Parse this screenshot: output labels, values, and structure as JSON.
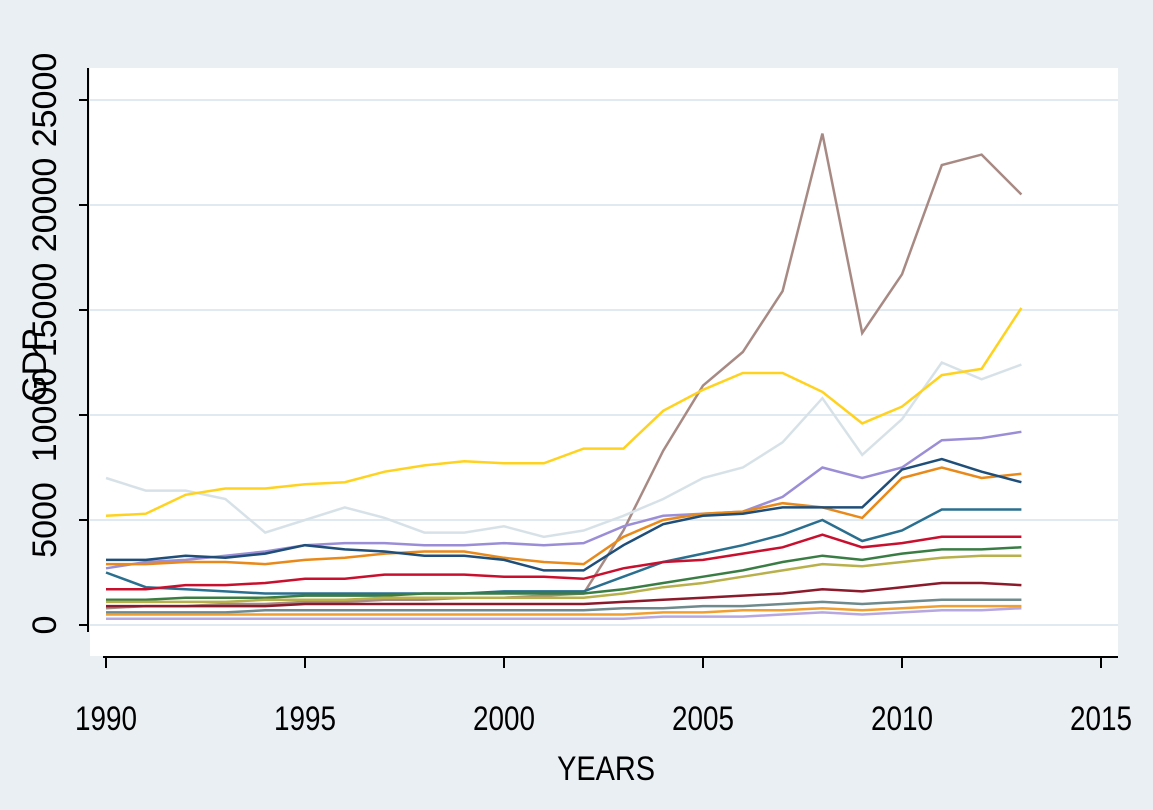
{
  "chart_data": {
    "type": "line",
    "x_label": "YEARS",
    "y_label": "GDP",
    "x": [
      1990,
      1991,
      1992,
      1993,
      1994,
      1995,
      1996,
      1997,
      1998,
      1999,
      2000,
      2001,
      2002,
      2003,
      2004,
      2005,
      2006,
      2007,
      2008,
      2009,
      2010,
      2011,
      2012,
      2013
    ],
    "xlim": [
      1990,
      2015
    ],
    "xticks": [
      1990,
      1995,
      2000,
      2005,
      2010,
      2015
    ],
    "ylim": [
      0,
      25000
    ],
    "yticks": [
      0,
      5000,
      10000,
      15000,
      20000,
      25000
    ],
    "grid": true,
    "series": [
      {
        "color": "#a88a84",
        "values": [
          800,
          900,
          900,
          1000,
          1000,
          1100,
          1100,
          1200,
          1200,
          1300,
          1300,
          1400,
          1500,
          4500,
          8300,
          11400,
          13000,
          15900,
          23400,
          13900,
          16700,
          21900,
          22400,
          20500
        ]
      },
      {
        "color": "#d7e2e8",
        "values": [
          7000,
          6400,
          6400,
          6000,
          4400,
          5000,
          5600,
          5100,
          4400,
          4400,
          4700,
          4200,
          4500,
          5200,
          6000,
          7000,
          7500,
          8700,
          10800,
          8100,
          9800,
          12500,
          11700,
          12400
        ]
      },
      {
        "color": "#ffd21f",
        "values": [
          5200,
          5300,
          6200,
          6500,
          6500,
          6700,
          6800,
          7300,
          7600,
          7800,
          7700,
          7700,
          8400,
          8400,
          10200,
          11200,
          12000,
          12000,
          11100,
          9600,
          10400,
          11900,
          12200,
          15100
        ]
      },
      {
        "color": "#9b8ed6",
        "values": [
          2700,
          3000,
          3100,
          3300,
          3500,
          3800,
          3900,
          3900,
          3800,
          3800,
          3900,
          3800,
          3900,
          4700,
          5200,
          5300,
          5400,
          6100,
          7500,
          7000,
          7500,
          8800,
          8900,
          9200
        ]
      },
      {
        "color": "#e8891a",
        "values": [
          2900,
          2900,
          3000,
          3000,
          2900,
          3100,
          3200,
          3400,
          3500,
          3500,
          3200,
          3000,
          2900,
          4200,
          5000,
          5300,
          5400,
          5800,
          5600,
          5100,
          7000,
          7500,
          7000,
          7200
        ]
      },
      {
        "color": "#1f4e79",
        "values": [
          3100,
          3100,
          3300,
          3200,
          3400,
          3800,
          3600,
          3500,
          3300,
          3300,
          3100,
          2600,
          2600,
          3800,
          4800,
          5200,
          5300,
          5600,
          5600,
          5600,
          7400,
          7900,
          7300,
          6800
        ]
      },
      {
        "color": "#2a6f8f",
        "values": [
          2500,
          1800,
          1700,
          1600,
          1500,
          1500,
          1500,
          1500,
          1500,
          1500,
          1600,
          1600,
          1600,
          2300,
          3000,
          3400,
          3800,
          4300,
          5000,
          4000,
          4500,
          5500,
          5500,
          5500
        ]
      },
      {
        "color": "#c8102e",
        "values": [
          1700,
          1700,
          1900,
          1900,
          2000,
          2200,
          2200,
          2400,
          2400,
          2400,
          2300,
          2300,
          2200,
          2700,
          3000,
          3100,
          3400,
          3700,
          4300,
          3700,
          3900,
          4200,
          4200,
          4200
        ]
      },
      {
        "color": "#3a7d44",
        "values": [
          1200,
          1200,
          1300,
          1300,
          1300,
          1400,
          1400,
          1400,
          1500,
          1500,
          1500,
          1500,
          1500,
          1700,
          2000,
          2300,
          2600,
          3000,
          3300,
          3100,
          3400,
          3600,
          3600,
          3700
        ]
      },
      {
        "color": "#b8b04a",
        "values": [
          1100,
          1100,
          1100,
          1100,
          1200,
          1200,
          1200,
          1300,
          1300,
          1300,
          1300,
          1300,
          1300,
          1500,
          1800,
          2000,
          2300,
          2600,
          2900,
          2800,
          3000,
          3200,
          3300,
          3300
        ]
      },
      {
        "color": "#8b1a2b",
        "values": [
          900,
          900,
          900,
          900,
          900,
          1000,
          1000,
          1000,
          1000,
          1000,
          1000,
          1000,
          1000,
          1100,
          1200,
          1300,
          1400,
          1500,
          1700,
          1600,
          1800,
          2000,
          2000,
          1900
        ]
      },
      {
        "color": "#6e8a8c",
        "values": [
          600,
          600,
          600,
          600,
          700,
          700,
          700,
          700,
          700,
          700,
          700,
          700,
          700,
          800,
          800,
          900,
          900,
          1000,
          1100,
          1000,
          1100,
          1200,
          1200,
          1200
        ]
      },
      {
        "color": "#f0a030",
        "values": [
          500,
          500,
          500,
          500,
          500,
          500,
          500,
          500,
          500,
          500,
          500,
          500,
          500,
          500,
          600,
          600,
          700,
          700,
          800,
          700,
          800,
          900,
          900,
          900
        ]
      },
      {
        "color": "#b7a7e0",
        "values": [
          300,
          300,
          300,
          300,
          300,
          300,
          300,
          300,
          300,
          300,
          300,
          300,
          300,
          300,
          400,
          400,
          400,
          500,
          600,
          500,
          600,
          700,
          700,
          800
        ]
      }
    ]
  }
}
